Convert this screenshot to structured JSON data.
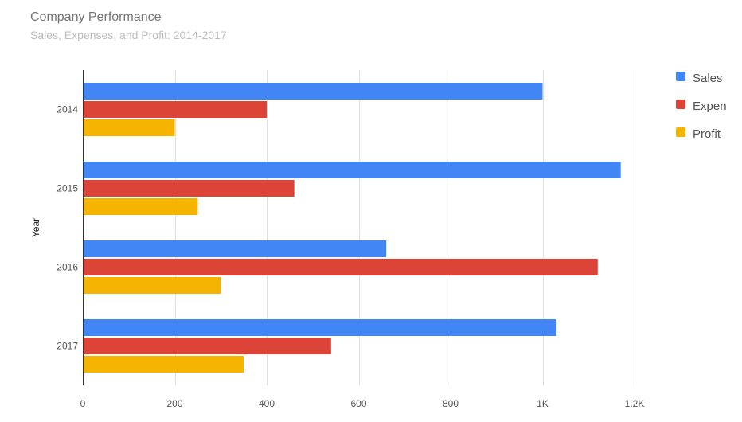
{
  "chart_data": {
    "type": "bar",
    "orientation": "horizontal",
    "title": "Company Performance",
    "subtitle": "Sales, Expenses, and Profit: 2014-2017",
    "ylabel": "Year",
    "xlabel": "",
    "categories": [
      "2014",
      "2015",
      "2016",
      "2017"
    ],
    "series": [
      {
        "name": "Sales",
        "legend_label": "Sales",
        "color": "#4285f4",
        "values": [
          1000,
          1170,
          660,
          1030
        ]
      },
      {
        "name": "Expen",
        "legend_label": "Expen",
        "color": "#db4437",
        "values": [
          400,
          460,
          1120,
          540
        ]
      },
      {
        "name": "Profit",
        "legend_label": "Profit",
        "color": "#f4b400",
        "values": [
          200,
          250,
          300,
          350
        ]
      }
    ],
    "xlim": [
      0,
      1200
    ],
    "x_ticks": [
      0,
      200,
      400,
      600,
      800,
      1000,
      1200
    ],
    "x_tick_labels": [
      "0",
      "200",
      "400",
      "600",
      "800",
      "1K",
      "1.2K"
    ],
    "grid": true,
    "legend_position": "right"
  }
}
